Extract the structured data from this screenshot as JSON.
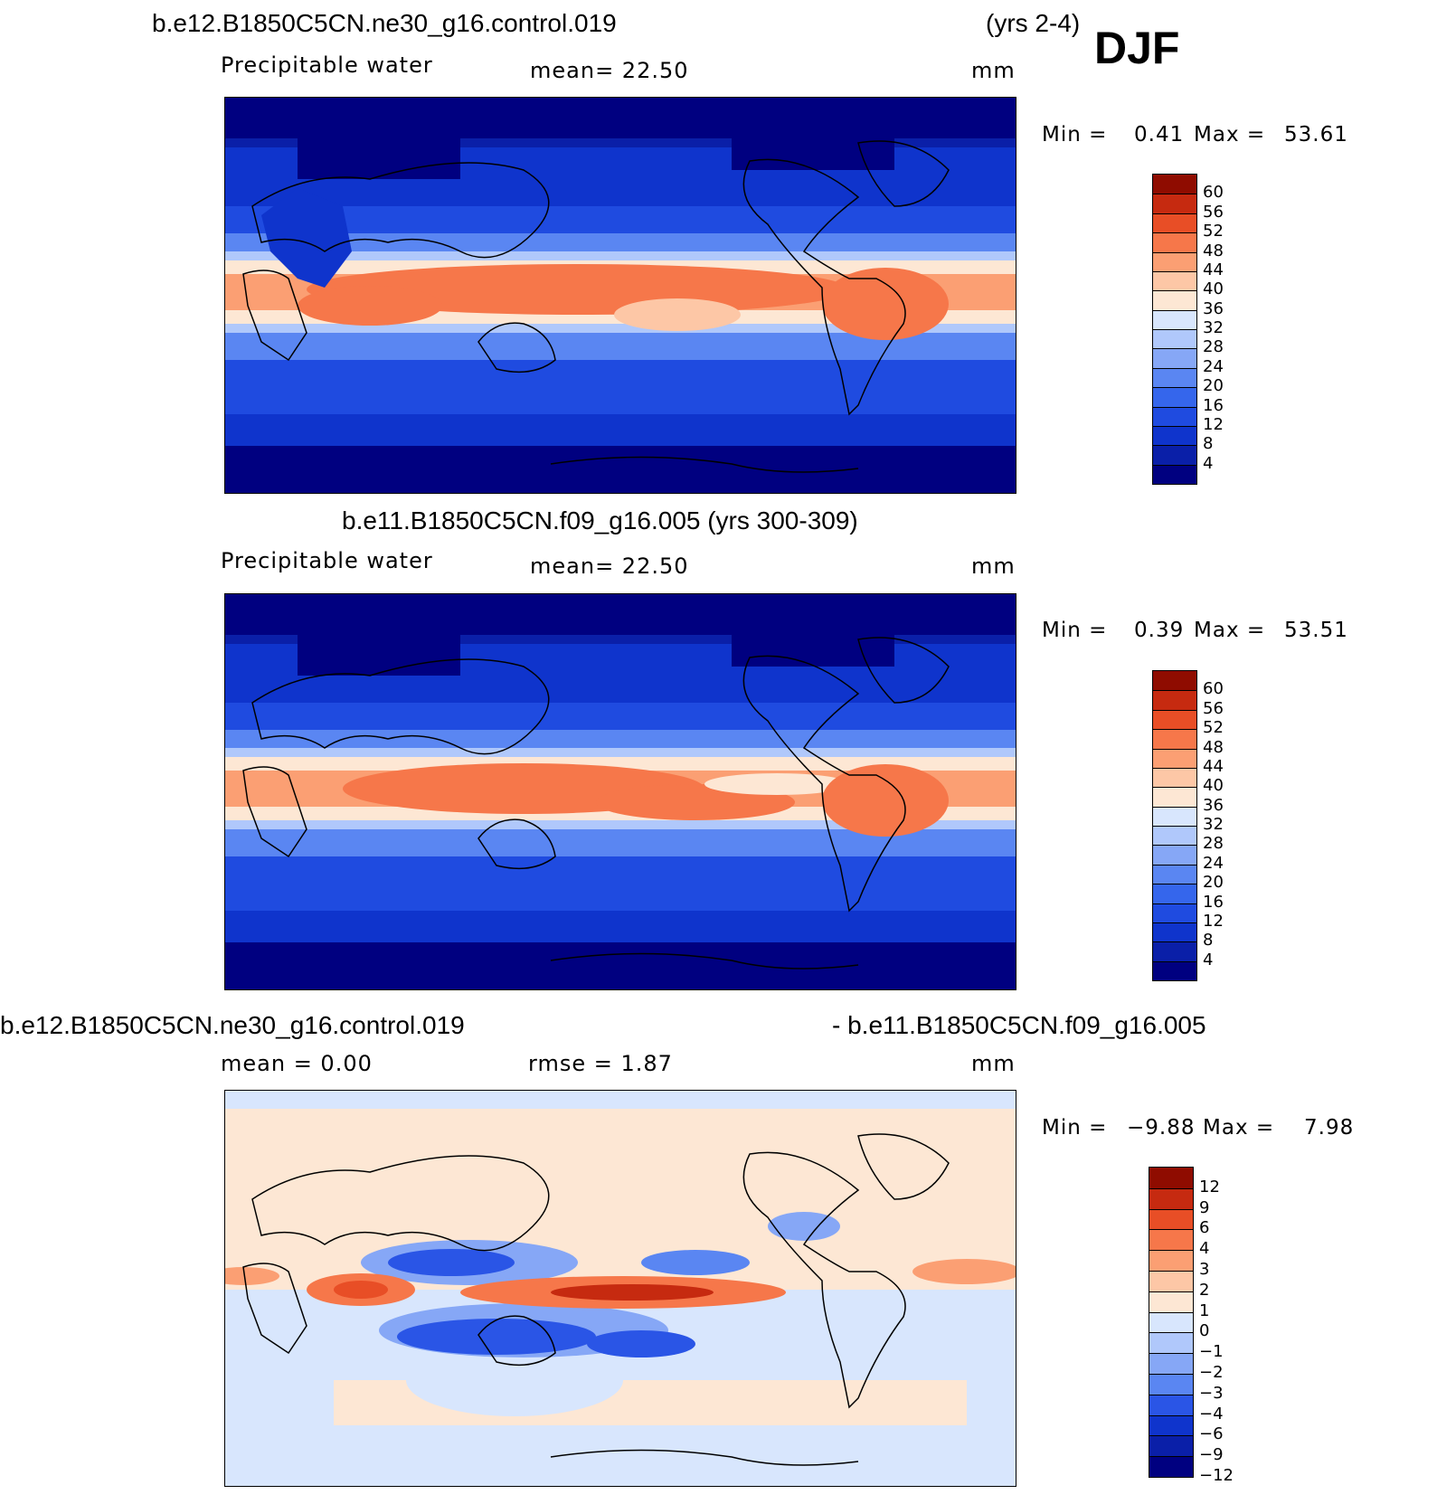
{
  "season": "DJF",
  "panels": [
    {
      "title": "b.e12.B1850C5CN.ne30_g16.control.019",
      "years": "(yrs 2-4)",
      "left_label": "Precipitable  water",
      "center_label": "mean=   22.50",
      "units": "mm",
      "min_label": "Min  =",
      "min_value": "0.41",
      "max_label": "Max  =",
      "max_value": "53.61",
      "colorbar_ticks": [
        "60",
        "56",
        "52",
        "48",
        "44",
        "40",
        "36",
        "32",
        "28",
        "24",
        "20",
        "16",
        "12",
        "8",
        "4"
      ]
    },
    {
      "title": "b.e11.B1850C5CN.f09_g16.005 (yrs 300-309)",
      "left_label": "Precipitable  water",
      "center_label": "mean=   22.50",
      "units": "mm",
      "min_label": "Min  =",
      "min_value": "0.39",
      "max_label": "Max  =",
      "max_value": "53.51",
      "colorbar_ticks": [
        "60",
        "56",
        "52",
        "48",
        "44",
        "40",
        "36",
        "32",
        "28",
        "24",
        "20",
        "16",
        "12",
        "8",
        "4"
      ]
    },
    {
      "title_left": "b.e12.B1850C5CN.ne30_g16.control.019",
      "title_right": "- b.e11.B1850C5CN.f09_g16.005",
      "left_label": "mean  =     0.00",
      "center_label": "rmse  =     1.87",
      "units": "mm",
      "min_label": "Min  =",
      "min_value": "−9.88",
      "max_label": "Max  =",
      "max_value": "7.98",
      "colorbar_ticks": [
        "12",
        "9",
        "6",
        "4",
        "3",
        "2",
        "1",
        "0",
        "−1",
        "−2",
        "−3",
        "−4",
        "−6",
        "−9",
        "−12"
      ]
    }
  ],
  "colors": {
    "abs_scale": [
      "#000080",
      "#0a1fa8",
      "#0f34cc",
      "#1f4be0",
      "#3566ec",
      "#5a86f2",
      "#86a7f6",
      "#b0c8fb",
      "#d8e6fd",
      "#fde7d4",
      "#fdc7a6",
      "#fb9f73",
      "#f6774a",
      "#e84e26",
      "#c62a10",
      "#8f0c00"
    ],
    "diff_scale": [
      "#000080",
      "#0a1fa8",
      "#0f34cc",
      "#2a55e6",
      "#5a86f2",
      "#86a7f6",
      "#b0c8fb",
      "#d8e6fd",
      "#fde7d4",
      "#fdc7a6",
      "#fb9f73",
      "#f6774a",
      "#e84e26",
      "#c62a10",
      "#8f0c00"
    ]
  }
}
